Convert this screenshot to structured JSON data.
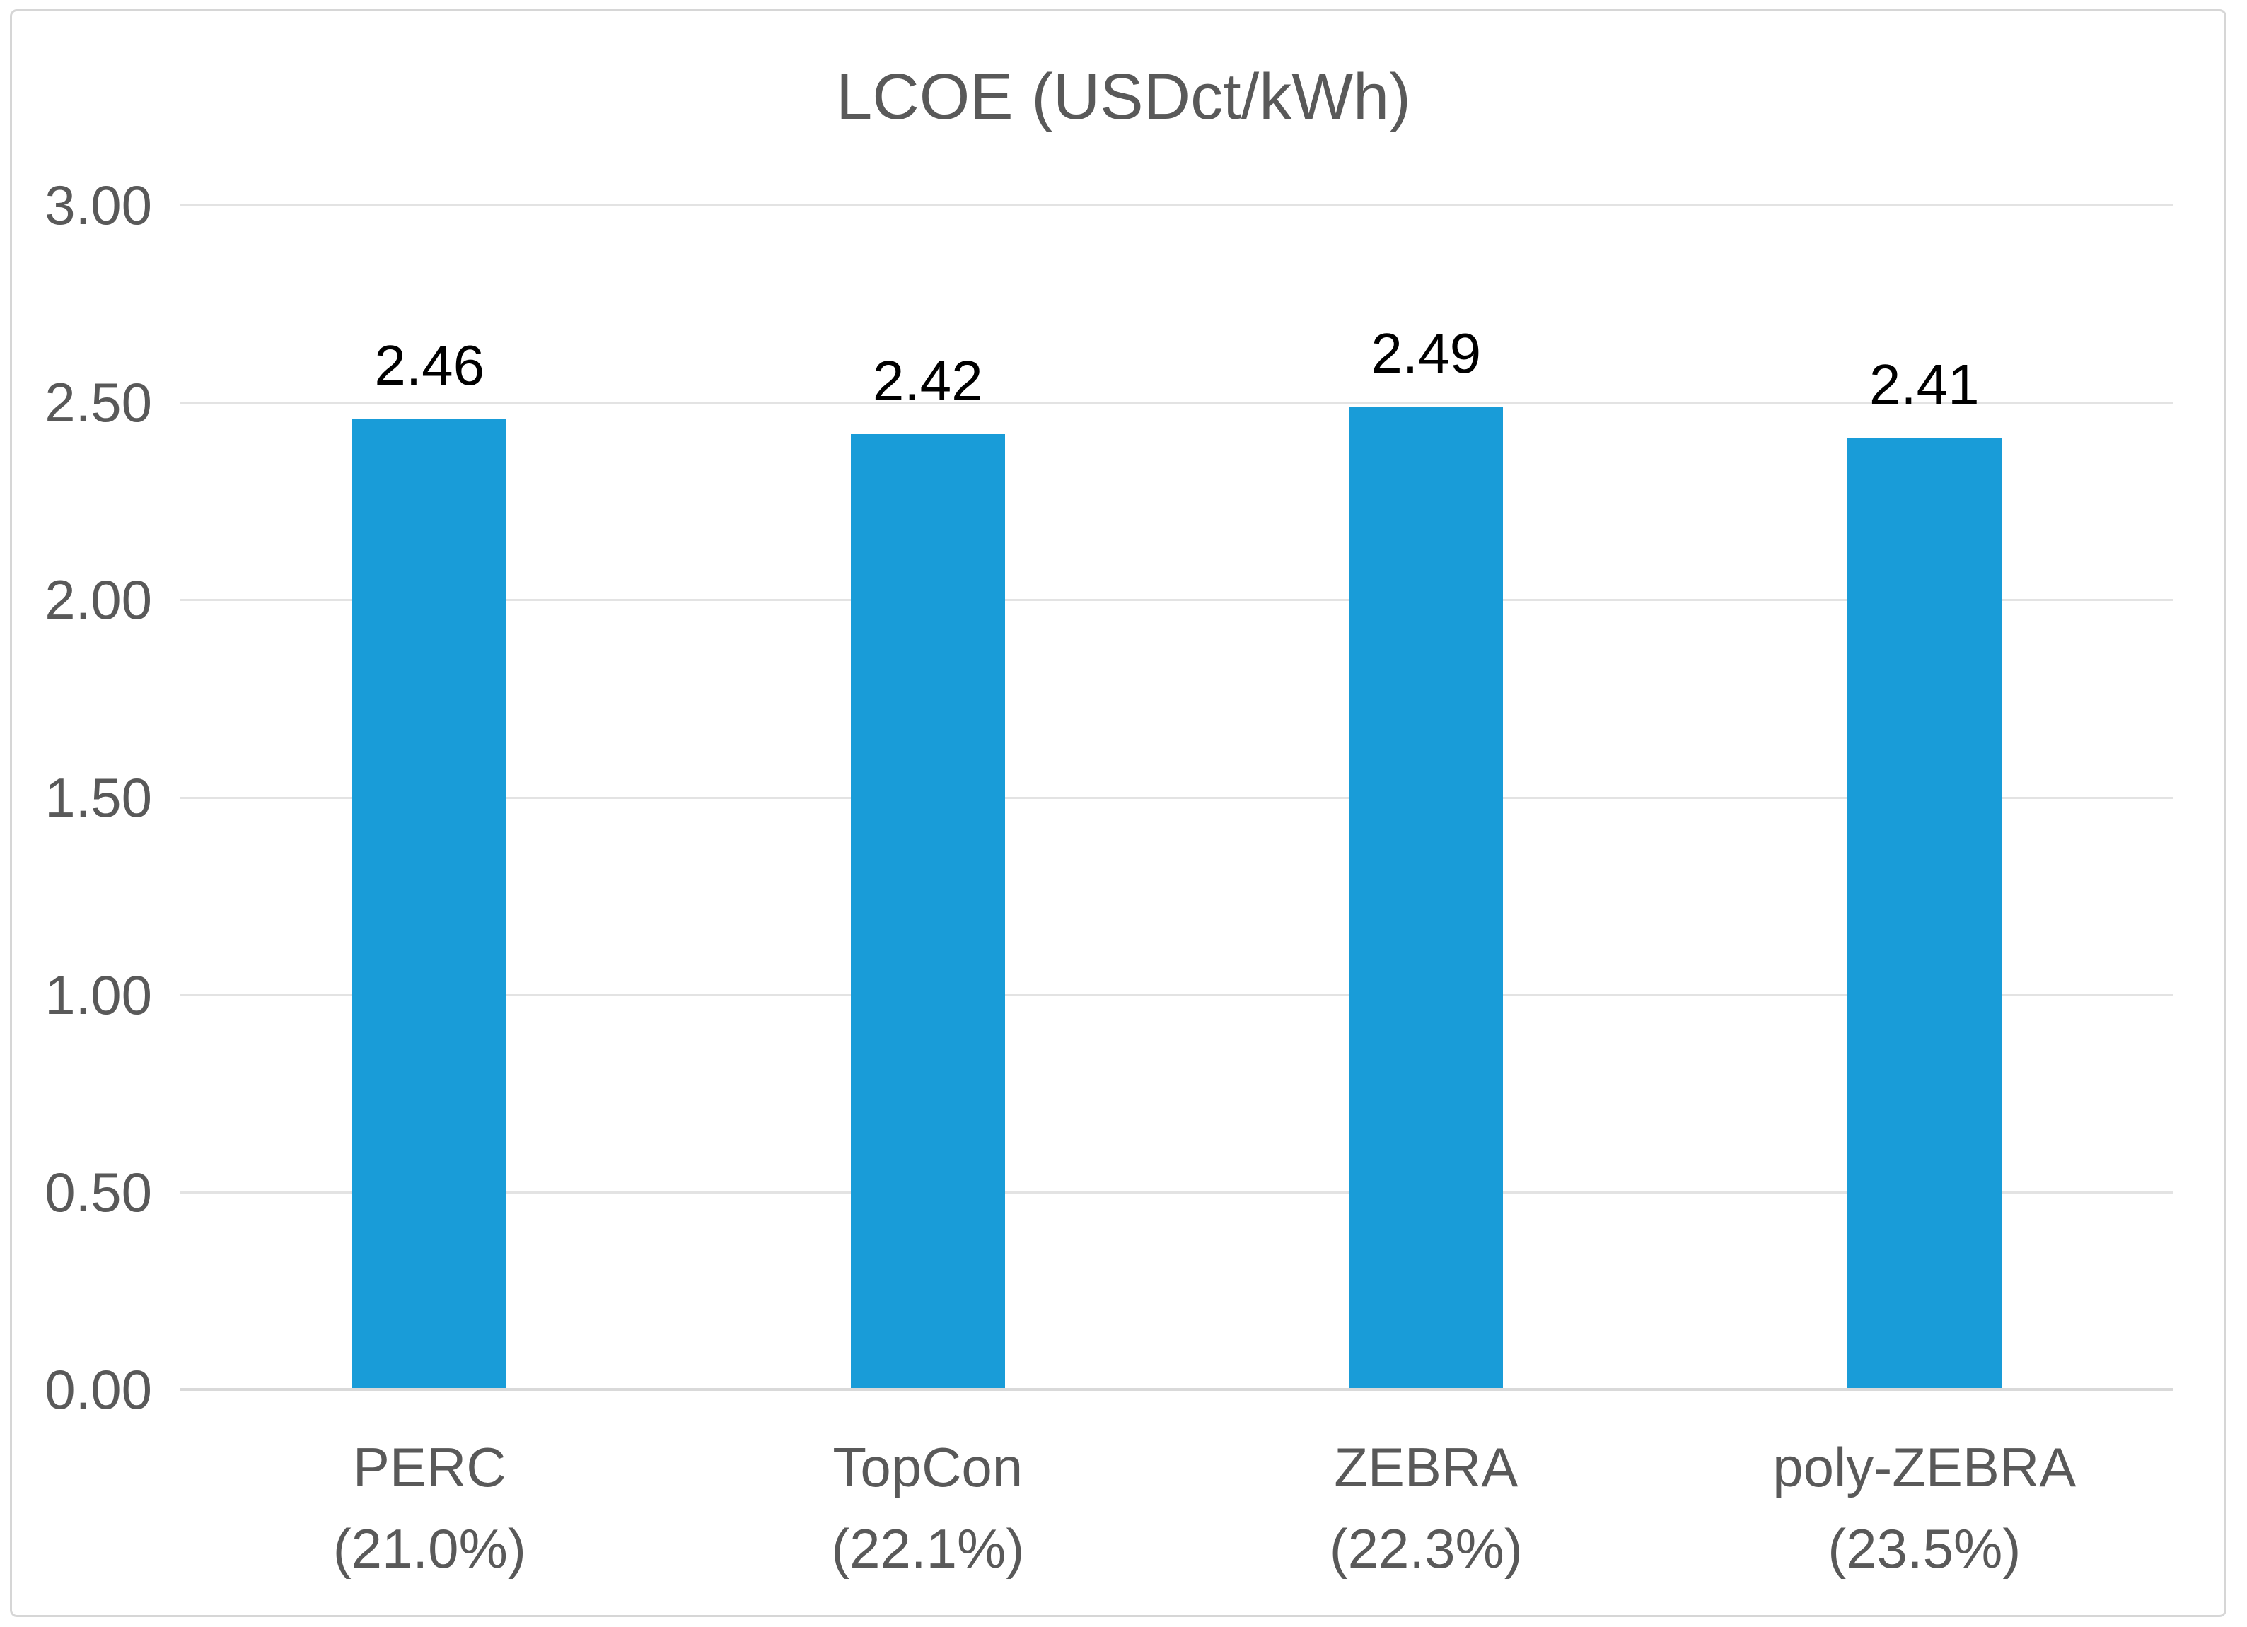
{
  "chart_data": {
    "type": "bar",
    "title": "LCOE (USDct/kWh)",
    "categories": [
      "PERC",
      "TopCon",
      "ZEBRA",
      "poly-ZEBRA"
    ],
    "category_sublabels": [
      "(21.0%)",
      "(22.1%)",
      "(22.3%)",
      "(23.5%)"
    ],
    "values": [
      2.46,
      2.42,
      2.49,
      2.41
    ],
    "value_labels": [
      "2.46",
      "2.42",
      "2.49",
      "2.41"
    ],
    "xlabel": "",
    "ylabel": "",
    "ylim": [
      0,
      3.0
    ],
    "ytick_step": 0.5,
    "ytick_labels": [
      "0.00",
      "0.50",
      "1.00",
      "1.50",
      "2.00",
      "2.50",
      "3.00"
    ],
    "grid": true,
    "legend_position": "none",
    "colors": {
      "bar": "#199CD8",
      "gridline": "#E3E3E3",
      "axis_line": "#D9D9D9",
      "frame_border": "#D6D6D6",
      "title_text": "#595959",
      "tick_text": "#595959",
      "category_text": "#595959",
      "value_label_text": "#000000",
      "background": "#FFFFFF"
    }
  }
}
